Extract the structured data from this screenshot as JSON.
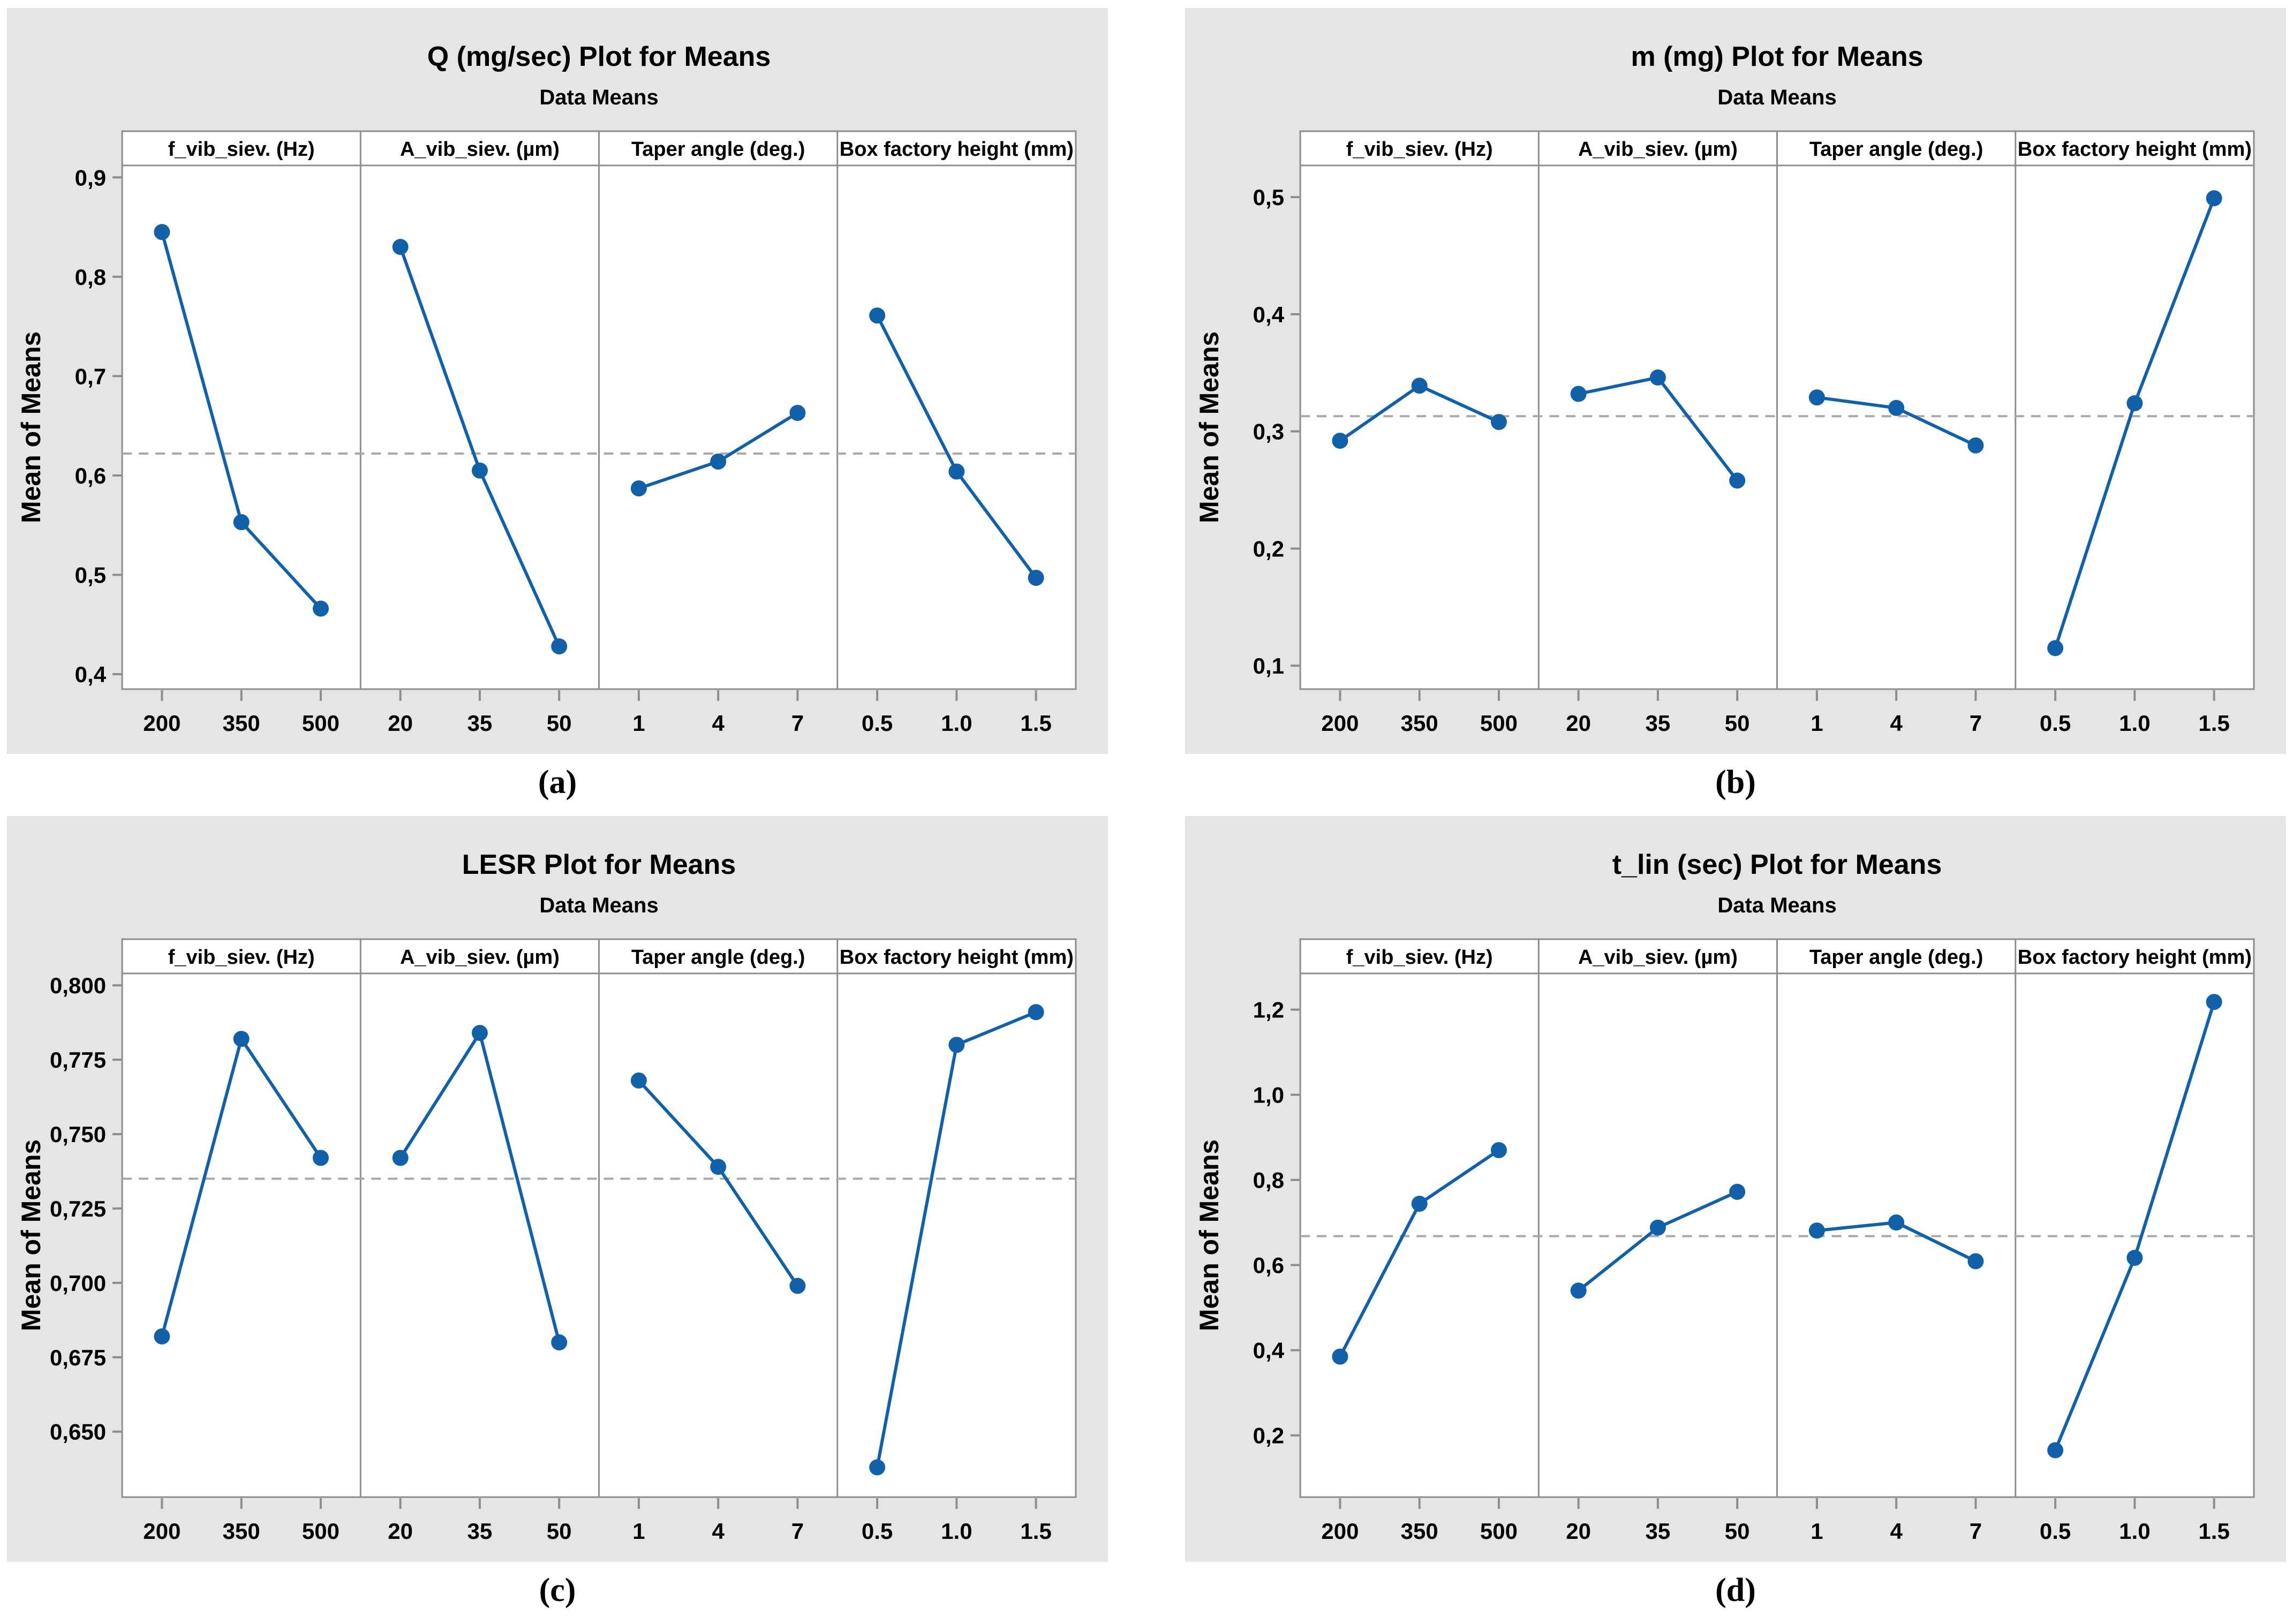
{
  "colors": {
    "series": "#1261a8",
    "mean_line": "#a8a8a8",
    "panel_border": "#8d8d8d",
    "card_background": "#e6e5e4",
    "plot_background": "#ffffff",
    "text": "#000000"
  },
  "chart_data": [
    {
      "id": "a",
      "type": "line",
      "title": "Q (mg/sec) Plot for Means",
      "subtitle": "Data Means",
      "ylabel": "Mean of Means",
      "caption": "(a)",
      "ylim": [
        0.385,
        0.912
      ],
      "grid": false,
      "mean_line": 0.622,
      "yticks": [
        {
          "v": 0.4,
          "label": "0,4"
        },
        {
          "v": 0.5,
          "label": "0,5"
        },
        {
          "v": 0.6,
          "label": "0,6"
        },
        {
          "v": 0.7,
          "label": "0,7"
        },
        {
          "v": 0.8,
          "label": "0,8"
        },
        {
          "v": 0.9,
          "label": "0,9"
        }
      ],
      "panels": [
        {
          "label": "f_vib_siev. (Hz)",
          "categories": [
            "200",
            "350",
            "500"
          ],
          "values": [
            0.845,
            0.553,
            0.466
          ]
        },
        {
          "label": "A_vib_siev. (µm)",
          "categories": [
            "20",
            "35",
            "50"
          ],
          "values": [
            0.83,
            0.605,
            0.428
          ]
        },
        {
          "label": "Taper angle (deg.)",
          "categories": [
            "1",
            "4",
            "7"
          ],
          "values": [
            0.587,
            0.614,
            0.663
          ]
        },
        {
          "label": "Box factory height (mm)",
          "categories": [
            "0.5",
            "1.0",
            "1.5"
          ],
          "values": [
            0.761,
            0.604,
            0.497
          ]
        }
      ]
    },
    {
      "id": "b",
      "type": "line",
      "title": "m (mg) Plot for Means",
      "subtitle": "Data Means",
      "ylabel": "Mean of Means",
      "caption": "(b)",
      "ylim": [
        0.08,
        0.527
      ],
      "grid": false,
      "mean_line": 0.313,
      "yticks": [
        {
          "v": 0.1,
          "label": "0,1"
        },
        {
          "v": 0.2,
          "label": "0,2"
        },
        {
          "v": 0.3,
          "label": "0,3"
        },
        {
          "v": 0.4,
          "label": "0,4"
        },
        {
          "v": 0.5,
          "label": "0,5"
        }
      ],
      "panels": [
        {
          "label": "f_vib_siev. (Hz)",
          "categories": [
            "200",
            "350",
            "500"
          ],
          "values": [
            0.292,
            0.339,
            0.308
          ]
        },
        {
          "label": "A_vib_siev. (µm)",
          "categories": [
            "20",
            "35",
            "50"
          ],
          "values": [
            0.332,
            0.346,
            0.258
          ]
        },
        {
          "label": "Taper angle (deg.)",
          "categories": [
            "1",
            "4",
            "7"
          ],
          "values": [
            0.329,
            0.32,
            0.288
          ]
        },
        {
          "label": "Box factory height (mm)",
          "categories": [
            "0.5",
            "1.0",
            "1.5"
          ],
          "values": [
            0.115,
            0.324,
            0.499
          ]
        }
      ]
    },
    {
      "id": "c",
      "type": "line",
      "title": "LESR Plot for Means",
      "subtitle": "Data Means",
      "ylabel": "Mean of Means",
      "caption": "(c)",
      "ylim": [
        0.628,
        0.804
      ],
      "grid": false,
      "mean_line": 0.735,
      "yticks": [
        {
          "v": 0.65,
          "label": "0,650"
        },
        {
          "v": 0.675,
          "label": "0,675"
        },
        {
          "v": 0.7,
          "label": "0,700"
        },
        {
          "v": 0.725,
          "label": "0,725"
        },
        {
          "v": 0.75,
          "label": "0,750"
        },
        {
          "v": 0.775,
          "label": "0,775"
        },
        {
          "v": 0.8,
          "label": "0,800"
        }
      ],
      "panels": [
        {
          "label": "f_vib_siev. (Hz)",
          "categories": [
            "200",
            "350",
            "500"
          ],
          "values": [
            0.682,
            0.782,
            0.742
          ]
        },
        {
          "label": "A_vib_siev. (µm)",
          "categories": [
            "20",
            "35",
            "50"
          ],
          "values": [
            0.742,
            0.784,
            0.68
          ]
        },
        {
          "label": "Taper angle (deg.)",
          "categories": [
            "1",
            "4",
            "7"
          ],
          "values": [
            0.768,
            0.739,
            0.699
          ]
        },
        {
          "label": "Box factory height (mm)",
          "categories": [
            "0.5",
            "1.0",
            "1.5"
          ],
          "values": [
            0.638,
            0.78,
            0.791
          ]
        }
      ]
    },
    {
      "id": "d",
      "type": "line",
      "title": "t_lin (sec) Plot for Means",
      "subtitle": "Data Means",
      "ylabel": "Mean of Means",
      "caption": "(d)",
      "ylim": [
        0.055,
        1.285
      ],
      "grid": false,
      "mean_line": 0.668,
      "yticks": [
        {
          "v": 0.2,
          "label": "0,2"
        },
        {
          "v": 0.4,
          "label": "0,4"
        },
        {
          "v": 0.6,
          "label": "0,6"
        },
        {
          "v": 0.8,
          "label": "0,8"
        },
        {
          "v": 1.0,
          "label": "1,0"
        },
        {
          "v": 1.2,
          "label": "1,2"
        }
      ],
      "panels": [
        {
          "label": "f_vib_siev. (Hz)",
          "categories": [
            "200",
            "350",
            "500"
          ],
          "values": [
            0.385,
            0.744,
            0.87
          ]
        },
        {
          "label": "A_vib_siev. (µm)",
          "categories": [
            "20",
            "35",
            "50"
          ],
          "values": [
            0.54,
            0.688,
            0.772
          ]
        },
        {
          "label": "Taper angle (deg.)",
          "categories": [
            "1",
            "4",
            "7"
          ],
          "values": [
            0.681,
            0.7,
            0.609
          ]
        },
        {
          "label": "Box factory height (mm)",
          "categories": [
            "0.5",
            "1.0",
            "1.5"
          ],
          "values": [
            0.165,
            0.617,
            1.218
          ]
        }
      ]
    }
  ]
}
